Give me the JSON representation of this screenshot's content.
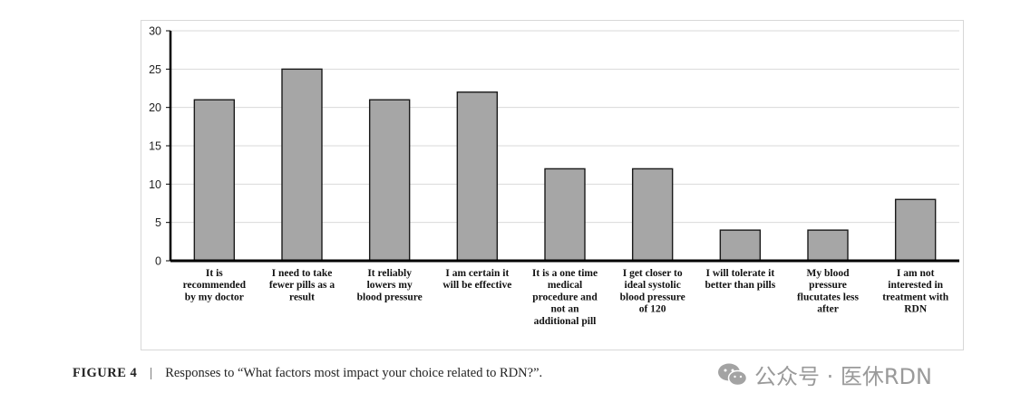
{
  "chart_data": {
    "type": "bar",
    "categories": [
      [
        "It is",
        "recommended",
        "by my doctor"
      ],
      [
        "I need to take",
        "fewer pills as a",
        "result"
      ],
      [
        "It reliably",
        "lowers my",
        "blood pressure"
      ],
      [
        "I am certain it",
        "will be effective"
      ],
      [
        "It is a one time",
        "medical",
        "procedure and",
        "not an",
        "additional pill"
      ],
      [
        "I get closer to",
        "ideal systolic",
        "blood pressure",
        "of 120"
      ],
      [
        "I will tolerate it",
        "better than pills"
      ],
      [
        "My blood",
        "pressure",
        "flucutates less",
        "after"
      ],
      [
        "I am not",
        "interested in",
        "treatment with",
        "RDN"
      ]
    ],
    "values": [
      21,
      25,
      21,
      22,
      12,
      12,
      4,
      4,
      8
    ],
    "ylim": [
      0,
      30
    ],
    "yticks": [
      0,
      5,
      10,
      15,
      20,
      25,
      30
    ],
    "grid": true,
    "colors": {
      "bar": "#a6a6a6",
      "bar_edge": "#1a1a1a",
      "grid": "#d9d9d9",
      "axis": "#000000"
    }
  },
  "caption": {
    "figure": "FIGURE 4",
    "separator": "|",
    "text": "Responses to “What factors most impact your choice related to RDN?”."
  },
  "watermark": {
    "icon": "wechat-icon",
    "text": "公众号 · 医休RDN"
  }
}
